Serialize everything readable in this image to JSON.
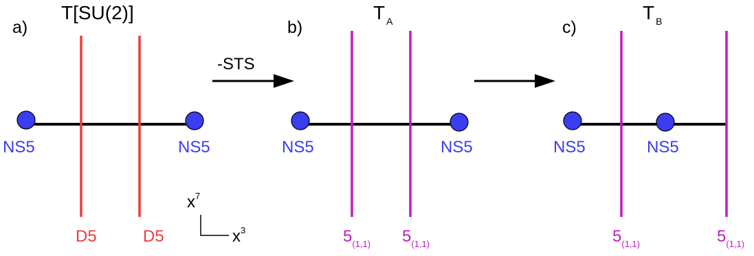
{
  "colors": {
    "ns5": "#3a3df0",
    "d5": "#ef3b3b",
    "brane_11": "#c218c2",
    "line": "#000000",
    "text": "#000000"
  },
  "panels": {
    "a": {
      "label": "a)",
      "title": "T[SU(2)]",
      "ns5_left": "NS5",
      "ns5_right": "NS5",
      "brane_left": "D5",
      "brane_right": "D5"
    },
    "b": {
      "label": "b)",
      "title_main": "T",
      "title_sub": "A",
      "ns5_left": "NS5",
      "ns5_right": "NS5",
      "brane_left_main": "5",
      "brane_left_sub": "(1,1)",
      "brane_right_main": "5",
      "brane_right_sub": "(1,1)"
    },
    "c": {
      "label": "c)",
      "title_main": "T",
      "title_sub": "B",
      "ns5_left": "NS5",
      "ns5_middle": "NS5",
      "brane_left_main": "5",
      "brane_left_sub": "(1,1)",
      "brane_right_main": "5",
      "brane_right_sub": "(1,1)"
    }
  },
  "arrows": {
    "first_label": "-STS"
  },
  "axes": {
    "vertical_main": "x",
    "vertical_sup": "7",
    "horizontal_main": "x",
    "horizontal_sup": "3"
  }
}
